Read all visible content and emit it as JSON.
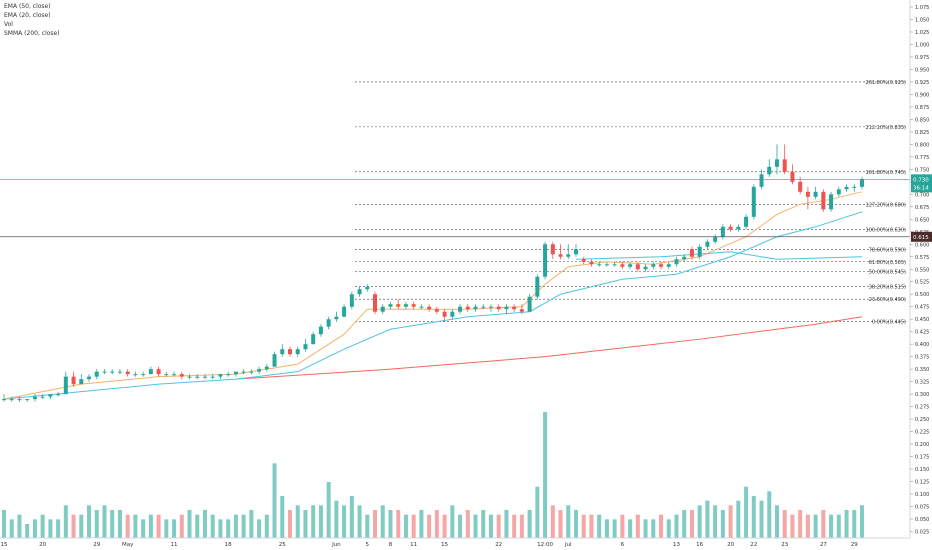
{
  "legend": {
    "ema50": "EMA (50, close)",
    "ema20": "EMA (20, close)",
    "vol": "Vol",
    "smma200": "SMMA (200, close)"
  },
  "colors": {
    "up": "#26a69a",
    "down": "#ef5350",
    "up_vol": "#80cbc4",
    "down_vol": "#f4a7a6",
    "ema50": "#4dc3e6",
    "ema20": "#f6b26b",
    "smma200": "#ef6a5a",
    "price_label": "#26a69a",
    "crosshair_label": "#4a2c2a"
  },
  "chart_data": {
    "type": "candlestick",
    "y_axis": {
      "range": [
        0.012,
        1.085
      ],
      "ticks": [
        "0.025",
        "0.050",
        "0.075",
        "0.100",
        "0.125",
        "0.150",
        "0.175",
        "0.200",
        "0.225",
        "0.250",
        "0.275",
        "0.300",
        "0.325",
        "0.350",
        "0.375",
        "0.400",
        "0.425",
        "0.450",
        "0.475",
        "0.500",
        "0.525",
        "0.550",
        "0.575",
        "0.600",
        "0.625",
        "0.650",
        "0.675",
        "0.700",
        "0.725",
        "0.750",
        "0.775",
        "0.800",
        "0.825",
        "0.850",
        "0.875",
        "0.900",
        "0.925",
        "0.950",
        "0.975",
        "1.000",
        "1.025",
        "1.050",
        "1.075"
      ]
    },
    "x_axis": {
      "ticks": [
        {
          "label": "15",
          "day": 0
        },
        {
          "label": "20",
          "day": 5
        },
        {
          "label": "29",
          "day": 12
        },
        {
          "label": "May",
          "day": 16
        },
        {
          "label": "11",
          "day": 22
        },
        {
          "label": "18",
          "day": 29
        },
        {
          "label": "25",
          "day": 36
        },
        {
          "label": "Jun",
          "day": 43
        },
        {
          "label": "8",
          "day": 50
        },
        {
          "label": "5",
          "day": 47
        },
        {
          "label": "11",
          "day": 53
        },
        {
          "label": "15",
          "day": 57
        },
        {
          "label": "22",
          "day": 64
        },
        {
          "label": "12:00",
          "day": 70
        },
        {
          "label": "Jul",
          "day": 73
        },
        {
          "label": "6",
          "day": 80
        },
        {
          "label": "13",
          "day": 87
        },
        {
          "label": "16",
          "day": 90
        },
        {
          "label": "20",
          "day": 94
        },
        {
          "label": "22",
          "day": 97
        },
        {
          "label": "23",
          "day": 101
        },
        {
          "label": "27",
          "day": 106
        },
        {
          "label": "29",
          "day": 110
        }
      ]
    },
    "last_price": {
      "value": 0.73,
      "label": "0.730",
      "countdown": "36:14"
    },
    "crosshair": {
      "value": 0.615,
      "label": "0.615"
    },
    "fib_levels": [
      {
        "value": 0.925,
        "label": "261.80%(0.925)"
      },
      {
        "value": 0.835,
        "label": "212.10%(0.835)"
      },
      {
        "value": 0.745,
        "label": "161.80%(0.745)"
      },
      {
        "value": 0.68,
        "label": "127.20%(0.680)"
      },
      {
        "value": 0.63,
        "label": "100.00%(0.630)"
      },
      {
        "value": 0.59,
        "label": "78.60%(0.590)"
      },
      {
        "value": 0.565,
        "label": "61.80%(0.565)"
      },
      {
        "value": 0.545,
        "label": "50.00%(0.545)"
      },
      {
        "value": 0.515,
        "label": "38.20%(0.515)"
      },
      {
        "value": 0.49,
        "label": "23.60%(0.490)"
      },
      {
        "value": 0.445,
        "label": "0.00%(0.445)"
      }
    ],
    "candles": [
      {
        "d": 0,
        "o": 0.29,
        "h": 0.3,
        "l": 0.285,
        "c": 0.29
      },
      {
        "d": 1,
        "o": 0.29,
        "h": 0.295,
        "l": 0.285,
        "c": 0.29
      },
      {
        "d": 2,
        "o": 0.29,
        "h": 0.295,
        "l": 0.285,
        "c": 0.29
      },
      {
        "d": 3,
        "o": 0.29,
        "h": 0.29,
        "l": 0.285,
        "c": 0.29
      },
      {
        "d": 4,
        "o": 0.29,
        "h": 0.3,
        "l": 0.285,
        "c": 0.295
      },
      {
        "d": 5,
        "o": 0.295,
        "h": 0.3,
        "l": 0.29,
        "c": 0.295
      },
      {
        "d": 6,
        "o": 0.295,
        "h": 0.3,
        "l": 0.29,
        "c": 0.3
      },
      {
        "d": 7,
        "o": 0.3,
        "h": 0.305,
        "l": 0.295,
        "c": 0.3
      },
      {
        "d": 8,
        "o": 0.3,
        "h": 0.345,
        "l": 0.3,
        "c": 0.335
      },
      {
        "d": 9,
        "o": 0.335,
        "h": 0.345,
        "l": 0.315,
        "c": 0.32
      },
      {
        "d": 10,
        "o": 0.32,
        "h": 0.34,
        "l": 0.32,
        "c": 0.33
      },
      {
        "d": 11,
        "o": 0.33,
        "h": 0.34,
        "l": 0.325,
        "c": 0.335
      },
      {
        "d": 12,
        "o": 0.335,
        "h": 0.35,
        "l": 0.33,
        "c": 0.345
      },
      {
        "d": 13,
        "o": 0.345,
        "h": 0.35,
        "l": 0.34,
        "c": 0.345
      },
      {
        "d": 14,
        "o": 0.345,
        "h": 0.35,
        "l": 0.34,
        "c": 0.345
      },
      {
        "d": 15,
        "o": 0.345,
        "h": 0.35,
        "l": 0.34,
        "c": 0.345
      },
      {
        "d": 16,
        "o": 0.345,
        "h": 0.35,
        "l": 0.335,
        "c": 0.34
      },
      {
        "d": 17,
        "o": 0.34,
        "h": 0.345,
        "l": 0.335,
        "c": 0.34
      },
      {
        "d": 18,
        "o": 0.34,
        "h": 0.345,
        "l": 0.335,
        "c": 0.34
      },
      {
        "d": 19,
        "o": 0.34,
        "h": 0.355,
        "l": 0.34,
        "c": 0.35
      },
      {
        "d": 20,
        "o": 0.35,
        "h": 0.355,
        "l": 0.335,
        "c": 0.34
      },
      {
        "d": 21,
        "o": 0.34,
        "h": 0.345,
        "l": 0.335,
        "c": 0.34
      },
      {
        "d": 22,
        "o": 0.34,
        "h": 0.345,
        "l": 0.335,
        "c": 0.34
      },
      {
        "d": 23,
        "o": 0.34,
        "h": 0.345,
        "l": 0.33,
        "c": 0.335
      },
      {
        "d": 24,
        "o": 0.335,
        "h": 0.34,
        "l": 0.33,
        "c": 0.335
      },
      {
        "d": 25,
        "o": 0.335,
        "h": 0.34,
        "l": 0.33,
        "c": 0.335
      },
      {
        "d": 26,
        "o": 0.335,
        "h": 0.34,
        "l": 0.33,
        "c": 0.335
      },
      {
        "d": 27,
        "o": 0.335,
        "h": 0.34,
        "l": 0.33,
        "c": 0.335
      },
      {
        "d": 28,
        "o": 0.335,
        "h": 0.34,
        "l": 0.33,
        "c": 0.34
      },
      {
        "d": 29,
        "o": 0.34,
        "h": 0.345,
        "l": 0.335,
        "c": 0.34
      },
      {
        "d": 30,
        "o": 0.34,
        "h": 0.345,
        "l": 0.335,
        "c": 0.345
      },
      {
        "d": 31,
        "o": 0.345,
        "h": 0.35,
        "l": 0.34,
        "c": 0.345
      },
      {
        "d": 32,
        "o": 0.345,
        "h": 0.35,
        "l": 0.34,
        "c": 0.345
      },
      {
        "d": 33,
        "o": 0.345,
        "h": 0.355,
        "l": 0.34,
        "c": 0.35
      },
      {
        "d": 34,
        "o": 0.35,
        "h": 0.36,
        "l": 0.345,
        "c": 0.355
      },
      {
        "d": 35,
        "o": 0.355,
        "h": 0.385,
        "l": 0.355,
        "c": 0.38
      },
      {
        "d": 36,
        "o": 0.38,
        "h": 0.4,
        "l": 0.375,
        "c": 0.39
      },
      {
        "d": 37,
        "o": 0.39,
        "h": 0.395,
        "l": 0.375,
        "c": 0.38
      },
      {
        "d": 38,
        "o": 0.38,
        "h": 0.395,
        "l": 0.375,
        "c": 0.39
      },
      {
        "d": 39,
        "o": 0.39,
        "h": 0.41,
        "l": 0.385,
        "c": 0.4
      },
      {
        "d": 40,
        "o": 0.4,
        "h": 0.425,
        "l": 0.4,
        "c": 0.42
      },
      {
        "d": 41,
        "o": 0.42,
        "h": 0.44,
        "l": 0.415,
        "c": 0.435
      },
      {
        "d": 42,
        "o": 0.435,
        "h": 0.455,
        "l": 0.43,
        "c": 0.45
      },
      {
        "d": 43,
        "o": 0.45,
        "h": 0.465,
        "l": 0.445,
        "c": 0.455
      },
      {
        "d": 44,
        "o": 0.455,
        "h": 0.48,
        "l": 0.455,
        "c": 0.475
      },
      {
        "d": 45,
        "o": 0.475,
        "h": 0.505,
        "l": 0.47,
        "c": 0.5
      },
      {
        "d": 46,
        "o": 0.5,
        "h": 0.515,
        "l": 0.495,
        "c": 0.51
      },
      {
        "d": 47,
        "o": 0.51,
        "h": 0.52,
        "l": 0.505,
        "c": 0.515
      },
      {
        "d": 48,
        "o": 0.5,
        "h": 0.505,
        "l": 0.46,
        "c": 0.465
      },
      {
        "d": 49,
        "o": 0.465,
        "h": 0.48,
        "l": 0.46,
        "c": 0.475
      },
      {
        "d": 50,
        "o": 0.475,
        "h": 0.485,
        "l": 0.47,
        "c": 0.48
      },
      {
        "d": 51,
        "o": 0.48,
        "h": 0.49,
        "l": 0.47,
        "c": 0.475
      },
      {
        "d": 52,
        "o": 0.475,
        "h": 0.485,
        "l": 0.47,
        "c": 0.48
      },
      {
        "d": 53,
        "o": 0.48,
        "h": 0.485,
        "l": 0.47,
        "c": 0.475
      },
      {
        "d": 54,
        "o": 0.475,
        "h": 0.48,
        "l": 0.47,
        "c": 0.475
      },
      {
        "d": 55,
        "o": 0.475,
        "h": 0.48,
        "l": 0.465,
        "c": 0.47
      },
      {
        "d": 56,
        "o": 0.47,
        "h": 0.475,
        "l": 0.46,
        "c": 0.465
      },
      {
        "d": 57,
        "o": 0.465,
        "h": 0.47,
        "l": 0.445,
        "c": 0.455
      },
      {
        "d": 58,
        "o": 0.455,
        "h": 0.47,
        "l": 0.45,
        "c": 0.465
      },
      {
        "d": 59,
        "o": 0.465,
        "h": 0.48,
        "l": 0.46,
        "c": 0.475
      },
      {
        "d": 60,
        "o": 0.475,
        "h": 0.48,
        "l": 0.465,
        "c": 0.47
      },
      {
        "d": 61,
        "o": 0.47,
        "h": 0.48,
        "l": 0.465,
        "c": 0.475
      },
      {
        "d": 62,
        "o": 0.475,
        "h": 0.48,
        "l": 0.47,
        "c": 0.475
      },
      {
        "d": 63,
        "o": 0.475,
        "h": 0.48,
        "l": 0.465,
        "c": 0.475
      },
      {
        "d": 64,
        "o": 0.475,
        "h": 0.48,
        "l": 0.465,
        "c": 0.47
      },
      {
        "d": 65,
        "o": 0.47,
        "h": 0.48,
        "l": 0.46,
        "c": 0.475
      },
      {
        "d": 66,
        "o": 0.475,
        "h": 0.48,
        "l": 0.465,
        "c": 0.47
      },
      {
        "d": 67,
        "o": 0.47,
        "h": 0.48,
        "l": 0.46,
        "c": 0.465
      },
      {
        "d": 68,
        "o": 0.465,
        "h": 0.5,
        "l": 0.465,
        "c": 0.495
      },
      {
        "d": 69,
        "o": 0.495,
        "h": 0.54,
        "l": 0.49,
        "c": 0.535
      },
      {
        "d": 70,
        "o": 0.535,
        "h": 0.605,
        "l": 0.53,
        "c": 0.6
      },
      {
        "d": 71,
        "o": 0.6,
        "h": 0.605,
        "l": 0.57,
        "c": 0.58
      },
      {
        "d": 72,
        "o": 0.58,
        "h": 0.6,
        "l": 0.57,
        "c": 0.575
      },
      {
        "d": 73,
        "o": 0.575,
        "h": 0.6,
        "l": 0.57,
        "c": 0.58
      },
      {
        "d": 74,
        "o": 0.58,
        "h": 0.6,
        "l": 0.575,
        "c": 0.59
      },
      {
        "d": 75,
        "o": 0.57,
        "h": 0.575,
        "l": 0.56,
        "c": 0.565
      },
      {
        "d": 76,
        "o": 0.565,
        "h": 0.57,
        "l": 0.555,
        "c": 0.56
      },
      {
        "d": 77,
        "o": 0.56,
        "h": 0.565,
        "l": 0.555,
        "c": 0.56
      },
      {
        "d": 78,
        "o": 0.56,
        "h": 0.565,
        "l": 0.555,
        "c": 0.56
      },
      {
        "d": 79,
        "o": 0.56,
        "h": 0.565,
        "l": 0.555,
        "c": 0.56
      },
      {
        "d": 80,
        "o": 0.56,
        "h": 0.565,
        "l": 0.55,
        "c": 0.555
      },
      {
        "d": 81,
        "o": 0.555,
        "h": 0.565,
        "l": 0.55,
        "c": 0.56
      },
      {
        "d": 82,
        "o": 0.56,
        "h": 0.565,
        "l": 0.545,
        "c": 0.55
      },
      {
        "d": 83,
        "o": 0.55,
        "h": 0.56,
        "l": 0.545,
        "c": 0.555
      },
      {
        "d": 84,
        "o": 0.555,
        "h": 0.565,
        "l": 0.55,
        "c": 0.56
      },
      {
        "d": 85,
        "o": 0.56,
        "h": 0.565,
        "l": 0.55,
        "c": 0.555
      },
      {
        "d": 86,
        "o": 0.555,
        "h": 0.565,
        "l": 0.55,
        "c": 0.56
      },
      {
        "d": 87,
        "o": 0.56,
        "h": 0.575,
        "l": 0.555,
        "c": 0.57
      },
      {
        "d": 88,
        "o": 0.57,
        "h": 0.58,
        "l": 0.565,
        "c": 0.575
      },
      {
        "d": 89,
        "o": 0.59,
        "h": 0.595,
        "l": 0.57,
        "c": 0.575
      },
      {
        "d": 90,
        "o": 0.575,
        "h": 0.6,
        "l": 0.57,
        "c": 0.595
      },
      {
        "d": 91,
        "o": 0.595,
        "h": 0.61,
        "l": 0.59,
        "c": 0.605
      },
      {
        "d": 92,
        "o": 0.605,
        "h": 0.62,
        "l": 0.6,
        "c": 0.615
      },
      {
        "d": 93,
        "o": 0.615,
        "h": 0.64,
        "l": 0.61,
        "c": 0.635
      },
      {
        "d": 94,
        "o": 0.635,
        "h": 0.64,
        "l": 0.625,
        "c": 0.63
      },
      {
        "d": 95,
        "o": 0.63,
        "h": 0.64,
        "l": 0.625,
        "c": 0.635
      },
      {
        "d": 96,
        "o": 0.635,
        "h": 0.66,
        "l": 0.63,
        "c": 0.655
      },
      {
        "d": 97,
        "o": 0.655,
        "h": 0.72,
        "l": 0.65,
        "c": 0.715
      },
      {
        "d": 98,
        "o": 0.715,
        "h": 0.75,
        "l": 0.71,
        "c": 0.74
      },
      {
        "d": 99,
        "o": 0.74,
        "h": 0.77,
        "l": 0.735,
        "c": 0.755
      },
      {
        "d": 100,
        "o": 0.755,
        "h": 0.8,
        "l": 0.74,
        "c": 0.77
      },
      {
        "d": 101,
        "o": 0.77,
        "h": 0.8,
        "l": 0.74,
        "c": 0.745
      },
      {
        "d": 102,
        "o": 0.745,
        "h": 0.76,
        "l": 0.72,
        "c": 0.725
      },
      {
        "d": 103,
        "o": 0.725,
        "h": 0.735,
        "l": 0.7,
        "c": 0.705
      },
      {
        "d": 104,
        "o": 0.705,
        "h": 0.715,
        "l": 0.67,
        "c": 0.695
      },
      {
        "d": 105,
        "o": 0.695,
        "h": 0.715,
        "l": 0.69,
        "c": 0.705
      },
      {
        "d": 106,
        "o": 0.705,
        "h": 0.71,
        "l": 0.665,
        "c": 0.67
      },
      {
        "d": 107,
        "o": 0.67,
        "h": 0.705,
        "l": 0.665,
        "c": 0.7
      },
      {
        "d": 108,
        "o": 0.7,
        "h": 0.715,
        "l": 0.695,
        "c": 0.71
      },
      {
        "d": 109,
        "o": 0.71,
        "h": 0.72,
        "l": 0.705,
        "c": 0.715
      },
      {
        "d": 110,
        "o": 0.715,
        "h": 0.72,
        "l": 0.705,
        "c": 0.715
      },
      {
        "d": 111,
        "o": 0.715,
        "h": 0.735,
        "l": 0.71,
        "c": 0.73
      }
    ],
    "volumes": [
      0.06,
      0.04,
      0.05,
      0.03,
      0.04,
      0.05,
      0.04,
      0.04,
      0.07,
      0.05,
      0.05,
      0.07,
      0.06,
      0.07,
      0.06,
      0.06,
      0.05,
      0.05,
      0.04,
      0.05,
      0.05,
      0.04,
      0.04,
      0.05,
      0.06,
      0.05,
      0.06,
      0.05,
      0.04,
      0.04,
      0.05,
      0.05,
      0.06,
      0.04,
      0.05,
      0.16,
      0.09,
      0.06,
      0.07,
      0.06,
      0.07,
      0.07,
      0.12,
      0.08,
      0.07,
      0.09,
      0.07,
      0.05,
      0.06,
      0.07,
      0.06,
      0.06,
      0.05,
      0.05,
      0.06,
      0.05,
      0.06,
      0.05,
      0.07,
      0.05,
      0.06,
      0.05,
      0.06,
      0.05,
      0.05,
      0.06,
      0.05,
      0.05,
      0.06,
      0.11,
      0.27,
      0.07,
      0.06,
      0.07,
      0.06,
      0.05,
      0.05,
      0.05,
      0.04,
      0.04,
      0.05,
      0.04,
      0.05,
      0.04,
      0.04,
      0.05,
      0.04,
      0.05,
      0.06,
      0.06,
      0.07,
      0.08,
      0.07,
      0.06,
      0.07,
      0.08,
      0.11,
      0.09,
      0.08,
      0.1,
      0.07,
      0.06,
      0.05,
      0.06,
      0.05,
      0.05,
      0.06,
      0.05,
      0.05,
      0.06,
      0.06,
      0.07
    ],
    "ema20": [
      [
        0,
        0.29
      ],
      [
        10,
        0.32
      ],
      [
        20,
        0.335
      ],
      [
        30,
        0.34
      ],
      [
        38,
        0.36
      ],
      [
        44,
        0.42
      ],
      [
        47,
        0.47
      ],
      [
        55,
        0.47
      ],
      [
        60,
        0.47
      ],
      [
        67,
        0.475
      ],
      [
        70,
        0.52
      ],
      [
        73,
        0.555
      ],
      [
        78,
        0.565
      ],
      [
        84,
        0.56
      ],
      [
        90,
        0.575
      ],
      [
        96,
        0.615
      ],
      [
        100,
        0.66
      ],
      [
        103,
        0.68
      ],
      [
        107,
        0.69
      ],
      [
        111,
        0.705
      ]
    ],
    "ema50": [
      [
        0,
        0.29
      ],
      [
        10,
        0.305
      ],
      [
        20,
        0.32
      ],
      [
        30,
        0.33
      ],
      [
        38,
        0.345
      ],
      [
        44,
        0.39
      ],
      [
        50,
        0.43
      ],
      [
        60,
        0.455
      ],
      [
        68,
        0.465
      ],
      [
        72,
        0.5
      ],
      [
        80,
        0.53
      ],
      [
        87,
        0.54
      ],
      [
        94,
        0.575
      ],
      [
        100,
        0.615
      ],
      [
        105,
        0.635
      ],
      [
        111,
        0.665
      ]
    ],
    "smma200": [
      [
        30,
        0.33
      ],
      [
        50,
        0.35
      ],
      [
        70,
        0.375
      ],
      [
        90,
        0.41
      ],
      [
        105,
        0.44
      ],
      [
        111,
        0.455
      ]
    ],
    "ema_flat": [
      [
        74,
        0.57
      ],
      [
        85,
        0.575
      ],
      [
        94,
        0.585
      ],
      [
        100,
        0.57
      ],
      [
        111,
        0.575
      ]
    ]
  }
}
